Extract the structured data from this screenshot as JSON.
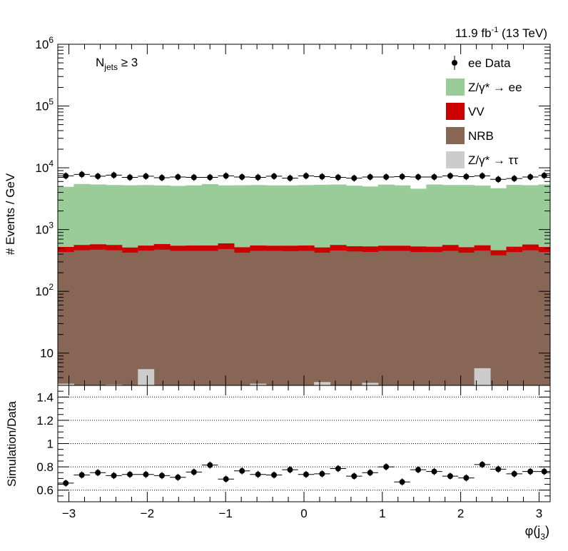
{
  "header": {
    "lumi_main": "11.9 fb",
    "lumi_exp": "-1",
    "lumi_rest": " (13 TeV)"
  },
  "annotation": {
    "main": "N",
    "sub": "jets",
    "rest": " ≥ 3"
  },
  "legend": {
    "items": [
      {
        "label": "ee Data",
        "type": "marker",
        "color": "#000000"
      },
      {
        "label": "Z/γ* → ee",
        "type": "box",
        "color": "#99cc99"
      },
      {
        "label": "VV",
        "type": "box",
        "color": "#cc0000"
      },
      {
        "label": "NRB",
        "type": "box",
        "color": "#886655"
      },
      {
        "label": "Z/γ* → ττ",
        "type": "box",
        "color": "#cccccc"
      }
    ]
  },
  "chart_data": [
    {
      "type": "bar",
      "stacked": true,
      "log_y": true,
      "ylabel": "# Events / GeV",
      "xlim": [
        -3.1416,
        3.1416
      ],
      "ylim": [
        3,
        1000000
      ],
      "y_ticks": [
        "10",
        "10^2",
        "10^3",
        "10^4",
        "10^5",
        "10^6"
      ],
      "bin_edges": [
        -3.1416,
        -2.9372,
        -2.7328,
        -2.5284,
        -2.324,
        -2.1196,
        -1.9152,
        -1.7108,
        -1.5064,
        -1.302,
        -1.0976,
        -0.8932,
        -0.6888,
        -0.4844,
        -0.28,
        -0.0756,
        0.1288,
        0.3332,
        0.5376,
        0.742,
        0.9464,
        1.1508,
        1.3552,
        1.5596,
        1.764,
        1.9684,
        2.1728,
        2.3772,
        2.5816,
        2.786,
        2.9904,
        3.1416
      ],
      "series": [
        {
          "name": "Z/γ* → ττ",
          "color": "#cccccc",
          "values": [
            3.2,
            2.8,
            2.6,
            3.1,
            2.5,
            5.5,
            2.7,
            2.6,
            2.4,
            2.8,
            2.6,
            2.5,
            3.2,
            2.6,
            2.7,
            2.5,
            3.4,
            2.6,
            2.5,
            3.3,
            2.6,
            2.5,
            2.7,
            2.6,
            2.5,
            2.6,
            5.7,
            2.6,
            2.5,
            2.7,
            2.6
          ]
        },
        {
          "name": "NRB",
          "color": "#886655",
          "values": [
            430,
            460,
            470,
            460,
            420,
            450,
            470,
            450,
            450,
            450,
            480,
            420,
            450,
            450,
            445,
            450,
            420,
            455,
            440,
            430,
            450,
            450,
            430,
            430,
            450,
            420,
            450,
            380,
            430,
            460,
            430
          ]
        },
        {
          "name": "VV",
          "color": "#cc0000",
          "values": [
            90,
            100,
            105,
            100,
            90,
            95,
            110,
            95,
            100,
            100,
            115,
            95,
            100,
            95,
            100,
            100,
            90,
            105,
            95,
            100,
            95,
            95,
            100,
            95,
            110,
            95,
            100,
            80,
            95,
            110,
            90
          ]
        },
        {
          "name": "Z/γ* → ee",
          "color": "#99cc99",
          "values": [
            4400,
            4900,
            4800,
            4700,
            4700,
            4700,
            4600,
            4550,
            4650,
            4900,
            4600,
            4700,
            4700,
            4650,
            4650,
            4700,
            4800,
            4800,
            4600,
            4450,
            4800,
            4650,
            4050,
            4850,
            4700,
            4750,
            4600,
            4200,
            4750,
            4650,
            4850
          ]
        },
        {
          "name": "ee Data",
          "color": "#000000",
          "markers": true,
          "values": [
            7400,
            7800,
            7300,
            7600,
            7000,
            7300,
            6900,
            7100,
            7000,
            7000,
            7400,
            7100,
            7000,
            7300,
            6800,
            7400,
            7200,
            7000,
            6800,
            7100,
            7100,
            7200,
            7100,
            7100,
            7400,
            7200,
            7400,
            6500,
            6700,
            7100,
            7500
          ]
        }
      ]
    },
    {
      "type": "scatter",
      "xlabel": "φ(j_3)",
      "ylabel": "Simulation/Data",
      "xlim": [
        -3.1416,
        3.1416
      ],
      "ylim": [
        0.5,
        1.5
      ],
      "x_ticks": [
        -3,
        -2,
        -1,
        0,
        1,
        2,
        3
      ],
      "x_tick_labels": [
        "−3",
        "−2",
        "−1",
        "0",
        "1",
        "2",
        "3"
      ],
      "y_ticks": [
        0.6,
        0.8,
        1,
        1.2,
        1.4
      ],
      "y_tick_labels": [
        "0.6",
        "0.8",
        "1",
        "1.2",
        "1.4"
      ],
      "gridlines_y": [
        0.6,
        0.8,
        1,
        1.2,
        1.4
      ],
      "x": [
        -3.0394,
        -2.835,
        -2.6306,
        -2.4262,
        -2.2218,
        -2.0174,
        -1.813,
        -1.6086,
        -1.4042,
        -1.1998,
        -0.9954,
        -0.791,
        -0.5866,
        -0.3822,
        -0.1778,
        0.0266,
        0.231,
        0.4354,
        0.6398,
        0.8442,
        1.0486,
        1.253,
        1.4574,
        1.6618,
        1.8662,
        2.0706,
        2.275,
        2.4794,
        2.6838,
        2.8882,
        3.066
      ],
      "values": [
        0.66,
        0.73,
        0.75,
        0.725,
        0.735,
        0.735,
        0.725,
        0.71,
        0.755,
        0.815,
        0.695,
        0.765,
        0.735,
        0.73,
        0.775,
        0.735,
        0.74,
        0.785,
        0.72,
        0.75,
        0.8,
        0.67,
        0.775,
        0.76,
        0.72,
        0.705,
        0.82,
        0.78,
        0.74,
        0.76,
        0.76
      ]
    }
  ]
}
